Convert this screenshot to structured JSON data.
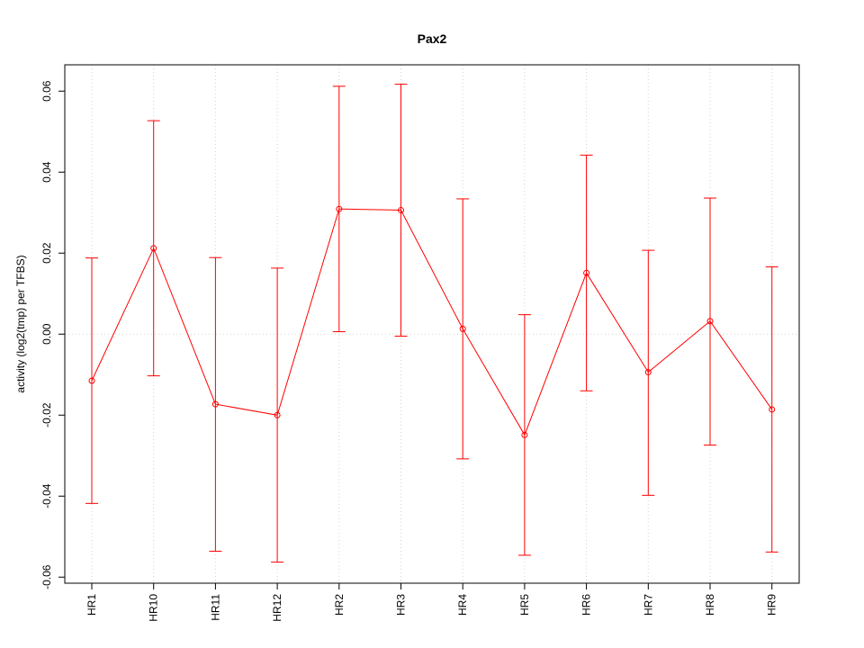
{
  "chart_data": {
    "type": "line",
    "title": "Pax2",
    "xlabel": "",
    "ylabel": "activity (log2(tmp) per TFBS)",
    "categories": [
      "HR1",
      "HR10",
      "HR11",
      "HR12",
      "HR2",
      "HR3",
      "HR4",
      "HR5",
      "HR6",
      "HR7",
      "HR8",
      "HR9"
    ],
    "series": [
      {
        "values": [
          -0.0115,
          0.0212,
          -0.0173,
          -0.02,
          0.0309,
          0.0306,
          0.0013,
          -0.0249,
          0.0151,
          -0.0094,
          0.0032,
          -0.0186
        ],
        "upper": [
          0.0188,
          0.0527,
          0.0189,
          0.0163,
          0.0612,
          0.0617,
          0.0334,
          0.0048,
          0.0442,
          0.0207,
          0.0336,
          0.0166
        ],
        "lower": [
          -0.0418,
          -0.0103,
          -0.0536,
          -0.0563,
          0.0006,
          -0.0005,
          -0.0308,
          -0.0546,
          -0.014,
          -0.0398,
          -0.0274,
          -0.0538
        ]
      }
    ],
    "yticks": [
      "-0.06",
      "-0.04",
      "-0.02",
      "0.00",
      "0.02",
      "0.04",
      "0.06"
    ],
    "ylim": [
      -0.0615,
      0.0665
    ],
    "grid": true,
    "color": "#ff0000"
  }
}
